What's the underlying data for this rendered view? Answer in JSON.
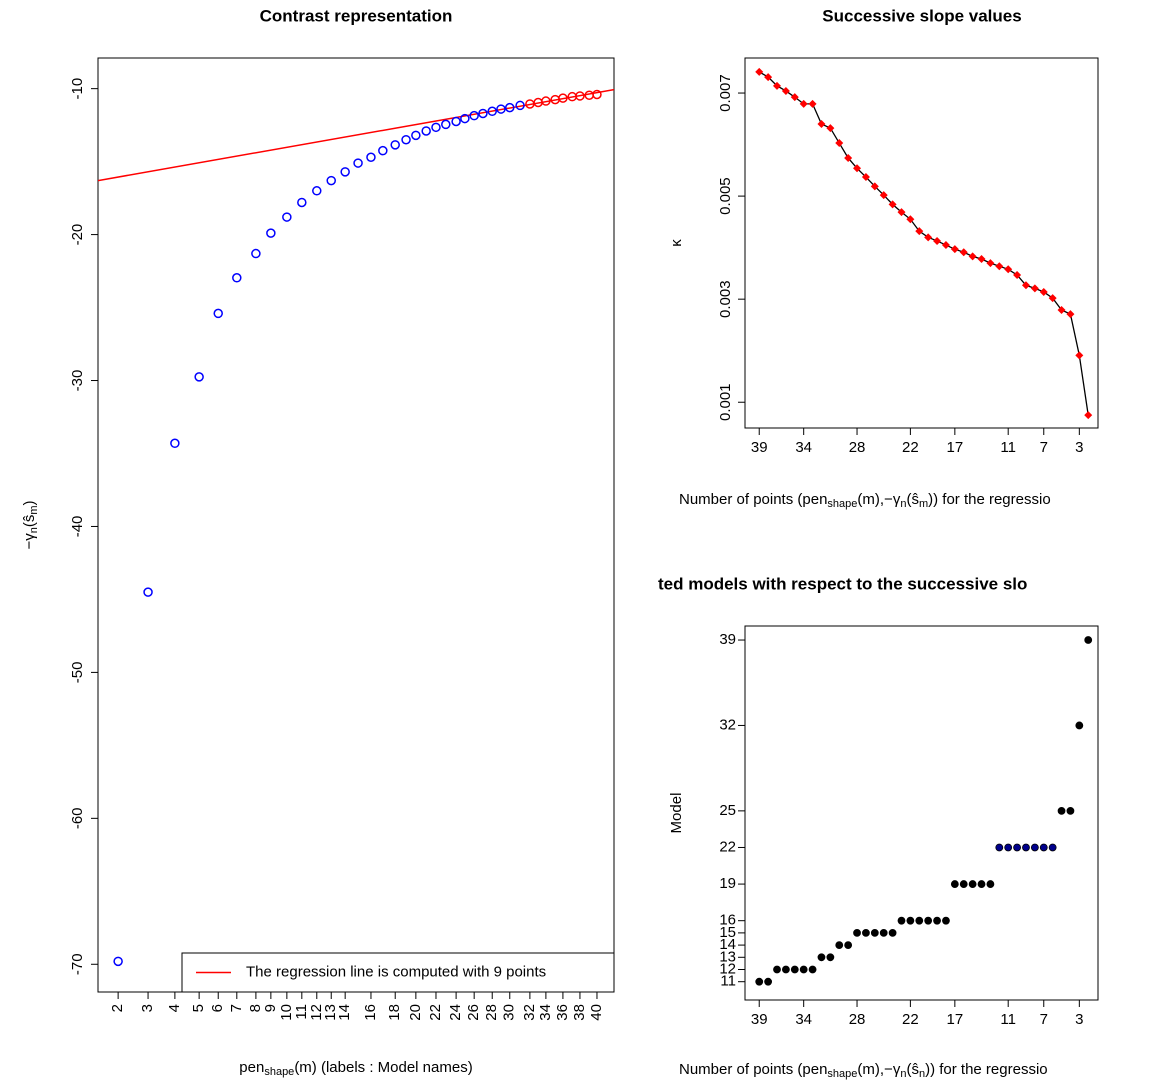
{
  "chart_data": [
    {
      "type": "scatter",
      "title": "Contrast representation",
      "xlabel": [
        {
          "text": "pen"
        },
        {
          "text": "shape",
          "sub": true
        },
        {
          "text": "(m) (labels : Model names)"
        }
      ],
      "ylabel": [
        {
          "text": "−γ"
        },
        {
          "text": "n",
          "sub": true
        },
        {
          "text": "(ŝ"
        },
        {
          "text": "m",
          "sub": true
        },
        {
          "text": ")"
        }
      ],
      "marker": "circle-open",
      "x": [
        3.9,
        9.7,
        14.9,
        19.6,
        23.3,
        26.9,
        30.6,
        33.5,
        36.6,
        39.5,
        42.4,
        45.2,
        47.9,
        50.4,
        52.9,
        55.2,
        57.6,
        59.7,
        61.6,
        63.6,
        65.5,
        67.4,
        69.4,
        71.1,
        72.9,
        74.6,
        76.4,
        78.1,
        79.8,
        81.8,
        83.7,
        85.3,
        86.8,
        88.6,
        90.1,
        91.9,
        93.4,
        95.2,
        96.7
      ],
      "values": [
        -69.8,
        -44.5,
        -34.3,
        -29.75,
        -25.4,
        -22.96,
        -21.3,
        -19.9,
        -18.8,
        -17.8,
        -17.0,
        -16.3,
        -15.7,
        -15.1,
        -14.7,
        -14.25,
        -13.85,
        -13.5,
        -13.2,
        -12.9,
        -12.65,
        -12.45,
        -12.25,
        -12.05,
        -11.85,
        -11.7,
        -11.55,
        -11.4,
        -11.3,
        -11.15,
        -11.05,
        -10.95,
        -10.85,
        -10.75,
        -10.65,
        -10.55,
        -10.5,
        -10.45,
        -10.4
      ],
      "colors": [
        "#0000ff",
        "#0000ff",
        "#0000ff",
        "#0000ff",
        "#0000ff",
        "#0000ff",
        "#0000ff",
        "#0000ff",
        "#0000ff",
        "#0000ff",
        "#0000ff",
        "#0000ff",
        "#0000ff",
        "#0000ff",
        "#0000ff",
        "#0000ff",
        "#0000ff",
        "#0000ff",
        "#0000ff",
        "#0000ff",
        "#0000ff",
        "#0000ff",
        "#0000ff",
        "#0000ff",
        "#0000ff",
        "#0000ff",
        "#0000ff",
        "#0000ff",
        "#0000ff",
        "#0000ff",
        "#ff0000",
        "#ff0000",
        "#ff0000",
        "#ff0000",
        "#ff0000",
        "#ff0000",
        "#ff0000",
        "#ff0000",
        "#ff0000"
      ],
      "regression_line": {
        "x": [
          0,
          100
        ],
        "values": [
          -16.3,
          -10.07
        ],
        "color": "#ff0000"
      },
      "legend": {
        "label": "The regression line is computed with 9 points",
        "corner": "bottom-right"
      },
      "xlim": [
        0,
        100
      ],
      "ylim": [
        -71.9,
        -7.9
      ],
      "xticks": [
        {
          "value": 3.9,
          "label": "2"
        },
        {
          "value": 9.7,
          "label": "3"
        },
        {
          "value": 14.9,
          "label": "4"
        },
        {
          "value": 19.6,
          "label": "5"
        },
        {
          "value": 23.3,
          "label": "6"
        },
        {
          "value": 26.9,
          "label": "7"
        },
        {
          "value": 30.6,
          "label": "8"
        },
        {
          "value": 33.5,
          "label": "9"
        },
        {
          "value": 36.6,
          "label": "10"
        },
        {
          "value": 39.5,
          "label": "11"
        },
        {
          "value": 42.4,
          "label": "12"
        },
        {
          "value": 45.2,
          "label": "13"
        },
        {
          "value": 47.9,
          "label": "14"
        },
        {
          "value": 52.9,
          "label": "16"
        },
        {
          "value": 57.6,
          "label": "18"
        },
        {
          "value": 61.6,
          "label": "20"
        },
        {
          "value": 65.5,
          "label": "22"
        },
        {
          "value": 69.4,
          "label": "24"
        },
        {
          "value": 72.9,
          "label": "26"
        },
        {
          "value": 76.4,
          "label": "28"
        },
        {
          "value": 79.8,
          "label": "30"
        },
        {
          "value": 83.7,
          "label": "32"
        },
        {
          "value": 86.8,
          "label": "34"
        },
        {
          "value": 90.1,
          "label": "36"
        },
        {
          "value": 93.4,
          "label": "38"
        },
        {
          "value": 96.7,
          "label": "40"
        }
      ],
      "yticks": [
        -10,
        -20,
        -30,
        -40,
        -50,
        -60,
        -70
      ]
    },
    {
      "type": "line",
      "title": "Successive slope values",
      "xlabel": [
        {
          "text": "Number of points (pen"
        },
        {
          "text": "shape",
          "sub": true
        },
        {
          "text": "(m),−γ"
        },
        {
          "text": "n",
          "sub": true
        },
        {
          "text": "(ŝ"
        },
        {
          "text": "m",
          "sub": true
        },
        {
          "text": ")) for the regressio"
        }
      ],
      "ylabel": [
        {
          "text": "κ"
        }
      ],
      "marker": "diamond",
      "color": "#000000",
      "marker_color": "#ff0000",
      "x": [
        39,
        38,
        37,
        36,
        35,
        34,
        33,
        32,
        31,
        30,
        29,
        28,
        27,
        26,
        25,
        24,
        23,
        22,
        21,
        20,
        19,
        18,
        17,
        16,
        15,
        14,
        13,
        12,
        11,
        10,
        9,
        8,
        7,
        6,
        5,
        4,
        3,
        2
      ],
      "values": [
        0.00741,
        0.00731,
        0.00714,
        0.00704,
        0.00692,
        0.00679,
        0.00679,
        0.0064,
        0.00632,
        0.00603,
        0.00574,
        0.00554,
        0.00537,
        0.00519,
        0.00502,
        0.00484,
        0.00469,
        0.00455,
        0.00432,
        0.0042,
        0.00413,
        0.00405,
        0.00397,
        0.00391,
        0.00383,
        0.00378,
        0.0037,
        0.00364,
        0.00358,
        0.00347,
        0.00327,
        0.00321,
        0.00314,
        0.00302,
        0.00279,
        0.00271,
        0.00191,
        0.00075
      ],
      "xlim": [
        40.6,
        0.9
      ],
      "ylim": [
        0.0005,
        0.00768
      ],
      "xticks": [
        39,
        34,
        28,
        22,
        17,
        11,
        7,
        3
      ],
      "yticks": [
        0.001,
        0.003,
        0.005,
        0.007
      ]
    },
    {
      "type": "scatter",
      "title": "ted models with respect to the successive slo",
      "xlabel": [
        {
          "text": "Number of points (pen"
        },
        {
          "text": "shape",
          "sub": true
        },
        {
          "text": "(m),−γ"
        },
        {
          "text": "n",
          "sub": true
        },
        {
          "text": "(ŝ"
        },
        {
          "text": "n",
          "sub": true
        },
        {
          "text": ")) for the regressio"
        }
      ],
      "ylabel": [
        {
          "text": "Model"
        }
      ],
      "marker": "circle-filled",
      "x": [
        39,
        38,
        37,
        36,
        35,
        34,
        33,
        32,
        31,
        30,
        29,
        28,
        27,
        26,
        25,
        24,
        23,
        22,
        21,
        20,
        19,
        18,
        17,
        16,
        15,
        14,
        13,
        12,
        11,
        10,
        9,
        8,
        7,
        6,
        5,
        4,
        3,
        2
      ],
      "values": [
        11,
        11,
        12,
        12,
        12,
        12,
        12,
        13,
        13,
        14,
        14,
        15,
        15,
        15,
        15,
        15,
        16,
        16,
        16,
        16,
        16,
        16,
        19,
        19,
        19,
        19,
        19,
        22,
        22,
        22,
        22,
        22,
        22,
        22,
        25,
        25,
        32,
        39
      ],
      "colors": [
        "#000000",
        "#000000",
        "#000000",
        "#000000",
        "#000000",
        "#000000",
        "#000000",
        "#000000",
        "#000000",
        "#000000",
        "#000000",
        "#000000",
        "#000000",
        "#000000",
        "#000000",
        "#000000",
        "#000000",
        "#000000",
        "#000000",
        "#000000",
        "#000000",
        "#000000",
        "#000000",
        "#000000",
        "#000000",
        "#000000",
        "#000000",
        "#00008b",
        "#00008b",
        "#00008b",
        "#00008b",
        "#00008b",
        "#00008b",
        "#00008b",
        "#000000",
        "#000000",
        "#000000",
        "#000000"
      ],
      "xlim": [
        40.6,
        0.9
      ],
      "ylim": [
        9.5,
        40.15
      ],
      "xticks": [
        39,
        34,
        28,
        22,
        17,
        11,
        7,
        3
      ],
      "yticks": [
        11,
        12,
        13,
        14,
        15,
        16,
        19,
        22,
        25,
        32,
        39
      ]
    }
  ]
}
